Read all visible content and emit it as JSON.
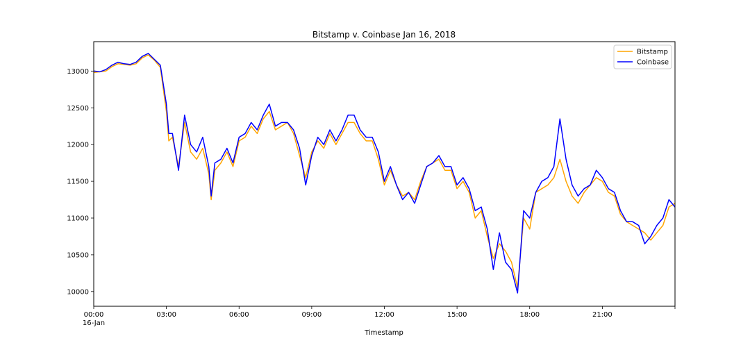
{
  "chart_data": {
    "type": "line",
    "title": "Bitstamp v. Coinbase Jan 16, 2018",
    "xlabel": "Timestamp",
    "ylabel": "",
    "x_unit": "hours",
    "xlim": [
      0,
      24
    ],
    "ylim": [
      9800,
      13400
    ],
    "x_ticks": [
      {
        "value": 0,
        "label": "00:00",
        "sublabel": "16-Jan"
      },
      {
        "value": 3,
        "label": "03:00"
      },
      {
        "value": 6,
        "label": "06:00"
      },
      {
        "value": 9,
        "label": "09:00"
      },
      {
        "value": 12,
        "label": "12:00"
      },
      {
        "value": 15,
        "label": "15:00"
      },
      {
        "value": 18,
        "label": "18:00"
      },
      {
        "value": 21,
        "label": "21:00"
      },
      {
        "value": 24,
        "label": ""
      }
    ],
    "y_ticks": [
      10000,
      10500,
      11000,
      11500,
      12000,
      12500,
      13000
    ],
    "legend": {
      "position": "upper-right"
    },
    "grid": false,
    "series": [
      {
        "name": "Bitstamp",
        "color": "#ffa500",
        "x": [
          0,
          0.25,
          0.5,
          0.75,
          1.0,
          1.25,
          1.5,
          1.75,
          2.0,
          2.25,
          2.5,
          2.75,
          3.0,
          3.1,
          3.25,
          3.5,
          3.75,
          4.0,
          4.25,
          4.5,
          4.75,
          4.85,
          5.0,
          5.25,
          5.5,
          5.75,
          6.0,
          6.25,
          6.5,
          6.75,
          7.0,
          7.25,
          7.5,
          7.75,
          8.0,
          8.25,
          8.5,
          8.75,
          9.0,
          9.25,
          9.5,
          9.75,
          10.0,
          10.25,
          10.5,
          10.75,
          11.0,
          11.25,
          11.5,
          11.75,
          12.0,
          12.25,
          12.5,
          12.75,
          13.0,
          13.25,
          13.5,
          13.75,
          14.0,
          14.25,
          14.5,
          14.75,
          15.0,
          15.25,
          15.5,
          15.75,
          16.0,
          16.25,
          16.5,
          16.75,
          17.0,
          17.25,
          17.5,
          17.75,
          18.0,
          18.25,
          18.5,
          18.75,
          19.0,
          19.25,
          19.5,
          19.75,
          20.0,
          20.25,
          20.5,
          20.75,
          21.0,
          21.25,
          21.5,
          21.75,
          22.0,
          22.25,
          22.5,
          22.75,
          23.0,
          23.25,
          23.5,
          23.75,
          24.0
        ],
        "y": [
          12980,
          12990,
          13000,
          13060,
          13100,
          13090,
          13080,
          13100,
          13180,
          13220,
          13150,
          13050,
          12450,
          12050,
          12100,
          11700,
          12300,
          11900,
          11800,
          11950,
          11600,
          11250,
          11650,
          11750,
          11900,
          11700,
          12050,
          12100,
          12250,
          12150,
          12350,
          12450,
          12200,
          12250,
          12300,
          12150,
          11850,
          11550,
          11900,
          12050,
          11950,
          12150,
          12000,
          12150,
          12300,
          12300,
          12150,
          12050,
          12050,
          11800,
          11450,
          11650,
          11450,
          11300,
          11350,
          11250,
          11500,
          11700,
          11750,
          11800,
          11650,
          11650,
          11400,
          11500,
          11350,
          11000,
          11100,
          10750,
          10450,
          10650,
          10550,
          10400,
          10050,
          11000,
          10850,
          11350,
          11400,
          11450,
          11550,
          11800,
          11500,
          11300,
          11200,
          11350,
          11450,
          11550,
          11500,
          11350,
          11300,
          11050,
          10950,
          10900,
          10850,
          10800,
          10700,
          10800,
          10900,
          11150,
          11200
        ]
      },
      {
        "name": "Coinbase",
        "color": "#0000ff",
        "x": [
          0,
          0.25,
          0.5,
          0.75,
          1.0,
          1.25,
          1.5,
          1.75,
          2.0,
          2.25,
          2.5,
          2.75,
          3.0,
          3.1,
          3.25,
          3.5,
          3.75,
          4.0,
          4.25,
          4.5,
          4.75,
          4.85,
          5.0,
          5.25,
          5.5,
          5.75,
          6.0,
          6.25,
          6.5,
          6.75,
          7.0,
          7.25,
          7.5,
          7.75,
          8.0,
          8.25,
          8.5,
          8.75,
          9.0,
          9.25,
          9.5,
          9.75,
          10.0,
          10.25,
          10.5,
          10.75,
          11.0,
          11.25,
          11.5,
          11.75,
          12.0,
          12.25,
          12.5,
          12.75,
          13.0,
          13.25,
          13.5,
          13.75,
          14.0,
          14.25,
          14.5,
          14.75,
          15.0,
          15.25,
          15.5,
          15.75,
          16.0,
          16.25,
          16.5,
          16.75,
          17.0,
          17.25,
          17.5,
          17.75,
          18.0,
          18.25,
          18.5,
          18.75,
          19.0,
          19.25,
          19.5,
          19.75,
          20.0,
          20.25,
          20.5,
          20.75,
          21.0,
          21.25,
          21.5,
          21.75,
          22.0,
          22.25,
          22.5,
          22.75,
          23.0,
          23.25,
          23.5,
          23.75,
          24.0
        ],
        "y": [
          13000,
          12990,
          13020,
          13080,
          13120,
          13100,
          13090,
          13120,
          13200,
          13240,
          13160,
          13080,
          12550,
          12150,
          12150,
          11650,
          12400,
          12000,
          11900,
          12100,
          11700,
          11300,
          11750,
          11800,
          11950,
          11750,
          12100,
          12150,
          12300,
          12200,
          12400,
          12550,
          12250,
          12300,
          12300,
          12200,
          11950,
          11450,
          11850,
          12100,
          12000,
          12200,
          12050,
          12200,
          12400,
          12400,
          12200,
          12100,
          12100,
          11900,
          11500,
          11700,
          11450,
          11250,
          11350,
          11200,
          11450,
          11700,
          11750,
          11850,
          11700,
          11700,
          11450,
          11550,
          11400,
          11100,
          11150,
          10850,
          10300,
          10800,
          10400,
          10300,
          9980,
          11100,
          11000,
          11350,
          11500,
          11550,
          11700,
          12350,
          11800,
          11450,
          11300,
          11400,
          11450,
          11650,
          11550,
          11400,
          11350,
          11100,
          10950,
          10950,
          10900,
          10650,
          10750,
          10900,
          11000,
          11250,
          11150
        ]
      }
    ]
  }
}
